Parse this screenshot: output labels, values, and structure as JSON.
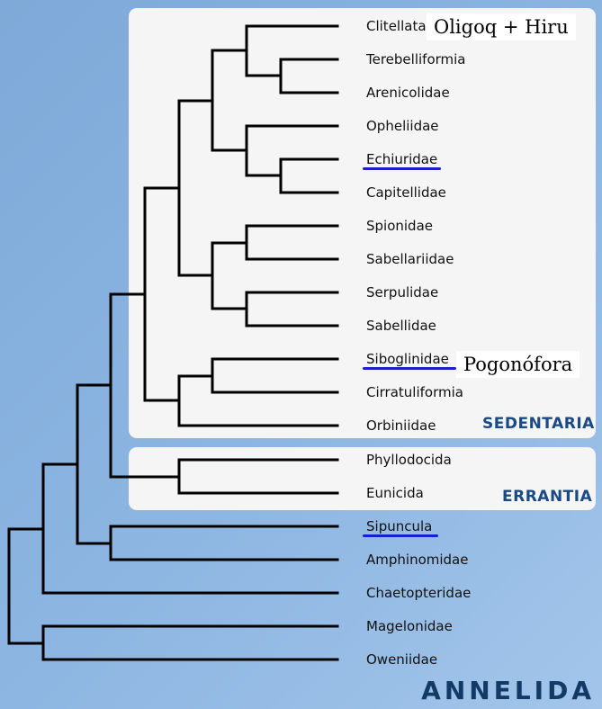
{
  "taxa": [
    "Clitellata",
    "Terebelliformia",
    "Arenicolidae",
    "Opheliidae",
    "Echiuridae",
    "Capitellidae",
    "Spionidae",
    "Sabellariidae",
    "Serpulidae",
    "Sabellidae",
    "Siboglinidae",
    "Cirratuliformia",
    "Orbiniidae",
    "Phyllodocida",
    "Eunicida",
    "Sipuncula",
    "Amphinomidae",
    "Chaetopteridae",
    "Magelonidae",
    "Oweniidae"
  ],
  "groups": {
    "sedentaria": "SEDENTARIA",
    "errantia": "ERRANTIA"
  },
  "title": "ANNELIDA",
  "notes": {
    "clitellata": "Oligoq  +  Hiru",
    "siboglinidae": "Pogonófora"
  },
  "colors": {
    "underline": "#1a1fcc",
    "group_label": "#1a4a84",
    "title": "#123a66"
  }
}
